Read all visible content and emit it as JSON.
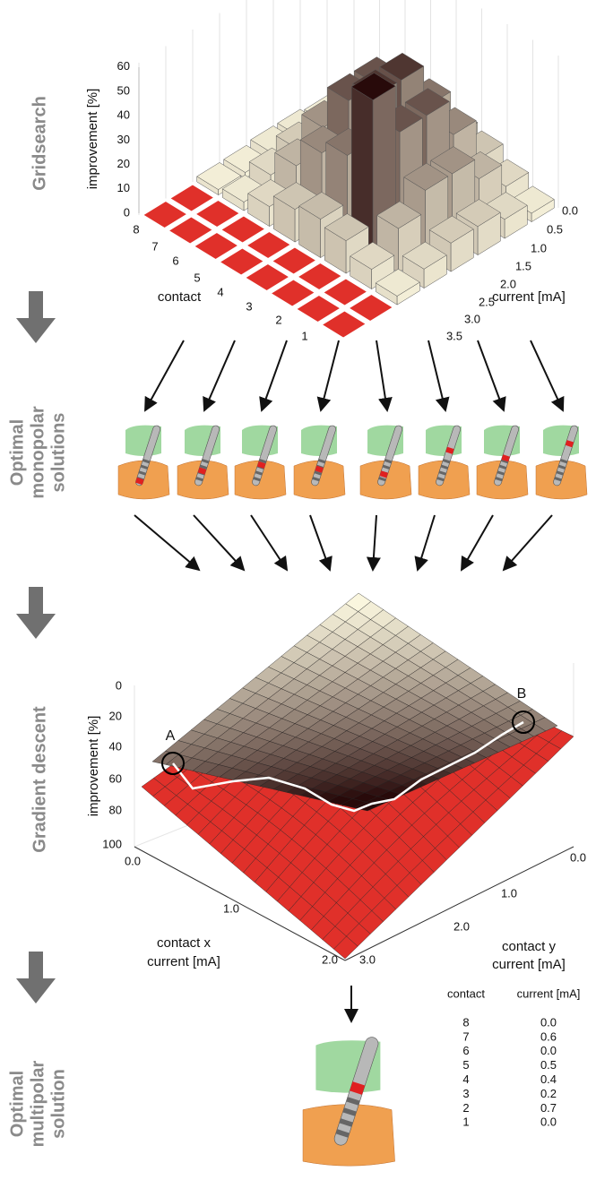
{
  "sections": {
    "gridsearch": [
      "Gridsearch"
    ],
    "monopolar": [
      "Optimal",
      "monopolar",
      "solutions"
    ],
    "gradient": [
      "Gradient descent"
    ],
    "multipolar": [
      "Optimal",
      "multipolar",
      "solution"
    ]
  },
  "gridsearch": {
    "z_label": "improvement [%]",
    "z_ticks": [
      "0",
      "10",
      "20",
      "30",
      "40",
      "50",
      "60"
    ],
    "contact_label": "contact",
    "contacts": [
      "8",
      "7",
      "6",
      "5",
      "4",
      "3",
      "2",
      "1"
    ],
    "current_label": "current [mA]",
    "currents": [
      "0.0",
      "0.5",
      "1.0",
      "1.5",
      "2.0",
      "2.5",
      "3.0",
      "3.5"
    ]
  },
  "gradient_descent": {
    "z_label": "improvement [%]",
    "z_ticks": [
      "0",
      "20",
      "40",
      "60",
      "80",
      "100"
    ],
    "x_label": [
      "contact x",
      "current [mA]"
    ],
    "x_ticks": [
      "0.0",
      "1.0",
      "2.0"
    ],
    "y_label": [
      "contact y",
      "current [mA]"
    ],
    "y_ticks": [
      "0.0",
      "1.0",
      "2.0",
      "3.0"
    ],
    "markers": [
      "A",
      "B"
    ]
  },
  "solution": {
    "headers": [
      "contact",
      "current [mA]"
    ],
    "rows": [
      [
        "8",
        "0.0"
      ],
      [
        "7",
        "0.6"
      ],
      [
        "6",
        "0.0"
      ],
      [
        "5",
        "0.5"
      ],
      [
        "4",
        "0.4"
      ],
      [
        "3",
        "0.2"
      ],
      [
        "2",
        "0.7"
      ],
      [
        "1",
        "0.0"
      ]
    ]
  }
}
